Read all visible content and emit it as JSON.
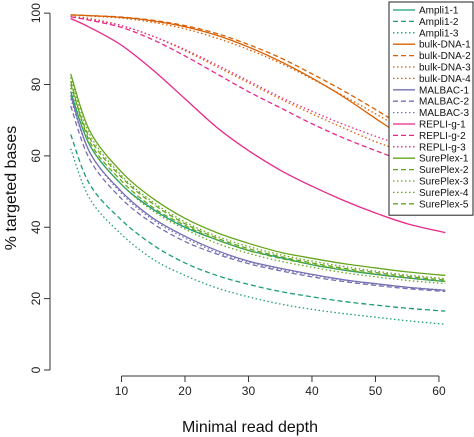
{
  "chart_data": {
    "type": "line",
    "xlabel": "Minimal read depth",
    "ylabel": "% targeted bases",
    "xlim": [
      0,
      63
    ],
    "ylim": [
      0,
      102
    ],
    "xticks": [
      10,
      20,
      30,
      40,
      50,
      60
    ],
    "yticks": [
      0,
      20,
      40,
      60,
      80,
      100
    ],
    "grid": false,
    "legend": {
      "position": "top-right"
    },
    "x": [
      2,
      5,
      10,
      15,
      20,
      25,
      30,
      35,
      40,
      45,
      50,
      55,
      61
    ],
    "series": [
      {
        "name": "Ampli1-1",
        "color": "#1b9e77",
        "dash": "solid",
        "values": [
          78,
          63,
          52,
          45,
          40,
          36.5,
          33.5,
          31.5,
          29.5,
          28,
          26.8,
          25.8,
          24.8
        ]
      },
      {
        "name": "Ampli1-2",
        "color": "#1b9e77",
        "dash": "dashed",
        "values": [
          66,
          52,
          42,
          35,
          30,
          26.5,
          24,
          22,
          20.5,
          19.2,
          18.2,
          17.3,
          16.5
        ]
      },
      {
        "name": "Ampli1-3",
        "color": "#1b9e77",
        "dash": "dotted",
        "values": [
          62,
          48,
          38,
          31,
          26.5,
          23,
          20.5,
          18.5,
          17,
          15.8,
          14.8,
          13.8,
          12.8
        ]
      },
      {
        "name": "bulk-DNA-1",
        "color": "#d95f02",
        "dash": "solid",
        "values": [
          99.5,
          99.3,
          98.8,
          97.8,
          96.2,
          93.8,
          90.5,
          86.5,
          81.8,
          76.5,
          70.5,
          64.5,
          56.5
        ]
      },
      {
        "name": "bulk-DNA-2",
        "color": "#d95f02",
        "dash": "dashed",
        "values": [
          99.5,
          99.3,
          98.9,
          98.0,
          96.5,
          94.3,
          91.2,
          87.5,
          83,
          78.2,
          73,
          67.5,
          61
        ]
      },
      {
        "name": "bulk-DNA-3",
        "color": "#d95f02",
        "dash": "dotted",
        "values": [
          99,
          98.5,
          96.5,
          93.5,
          89.5,
          85,
          80.5,
          76,
          71.8,
          67.8,
          64,
          60.8,
          57.5
        ]
      },
      {
        "name": "bulk-DNA-4",
        "color": "#d95f02",
        "dash": "dotted",
        "values": [
          99.5,
          99.2,
          98.6,
          97.4,
          95.6,
          93,
          89.8,
          86,
          81.6,
          76.8,
          71.8,
          66.8,
          61
        ]
      },
      {
        "name": "MALBAC-1",
        "color": "#7570b3",
        "dash": "solid",
        "values": [
          77,
          61,
          50,
          42.5,
          37.5,
          33.5,
          30.5,
          28.5,
          26.8,
          25.3,
          24.2,
          23.2,
          22.3
        ]
      },
      {
        "name": "MALBAC-2",
        "color": "#7570b3",
        "dash": "dashed",
        "values": [
          74,
          59,
          48,
          41,
          36,
          32.5,
          29.8,
          27.8,
          26.1,
          24.8,
          23.7,
          22.8,
          22
        ]
      },
      {
        "name": "MALBAC-3",
        "color": "#7570b3",
        "dash": "dotted",
        "values": [
          76,
          61,
          49.5,
          42,
          37,
          33,
          30.3,
          28.2,
          26.6,
          25.2,
          24.1,
          23.2,
          22.4
        ]
      },
      {
        "name": "REPLI-g-1",
        "color": "#e7298a",
        "dash": "solid",
        "values": [
          98.5,
          96,
          91,
          84,
          76,
          68,
          61.5,
          56,
          51.5,
          47.5,
          44,
          41,
          38.5
        ]
      },
      {
        "name": "REPLI-g-2",
        "color": "#e7298a",
        "dash": "dashed",
        "values": [
          99,
          98,
          96,
          92.5,
          88,
          83,
          78,
          73.5,
          69,
          65,
          61.5,
          58.3,
          55.5
        ]
      },
      {
        "name": "REPLI-g-3",
        "color": "#e7298a",
        "dash": "dotted",
        "values": [
          99,
          98.2,
          96.5,
          93.5,
          89.8,
          85.5,
          81,
          76.5,
          72.5,
          68.8,
          65.5,
          62.5,
          59.5
        ]
      },
      {
        "name": "SurePlex-1",
        "color": "#66a61e",
        "dash": "solid",
        "values": [
          83,
          67,
          55.5,
          48,
          42.5,
          38.5,
          35.5,
          33,
          31.3,
          29.8,
          28.6,
          27.5,
          26.5
        ]
      },
      {
        "name": "SurePlex-2",
        "color": "#66a61e",
        "dash": "dashed",
        "values": [
          81,
          64,
          53,
          45.5,
          40.5,
          36.5,
          33.5,
          31.3,
          29.6,
          28.1,
          26.9,
          25.8,
          24.8
        ]
      },
      {
        "name": "SurePlex-3",
        "color": "#66a61e",
        "dash": "dotted",
        "values": [
          79,
          63,
          52,
          44.5,
          39.5,
          35.5,
          32.7,
          30.5,
          28.8,
          27.3,
          26.1,
          25.1,
          24.2
        ]
      },
      {
        "name": "SurePlex-4",
        "color": "#66a61e",
        "dash": "dotted",
        "values": [
          82,
          66,
          54.5,
          47,
          41.5,
          37.5,
          34.6,
          32.3,
          30.5,
          29,
          27.7,
          26.6,
          25.6
        ]
      },
      {
        "name": "SurePlex-5",
        "color": "#66a61e",
        "dash": "dashed",
        "values": [
          80,
          65,
          54,
          46.5,
          41,
          37,
          34,
          31.8,
          30,
          28.5,
          27.3,
          26.2,
          25.2
        ]
      }
    ]
  }
}
